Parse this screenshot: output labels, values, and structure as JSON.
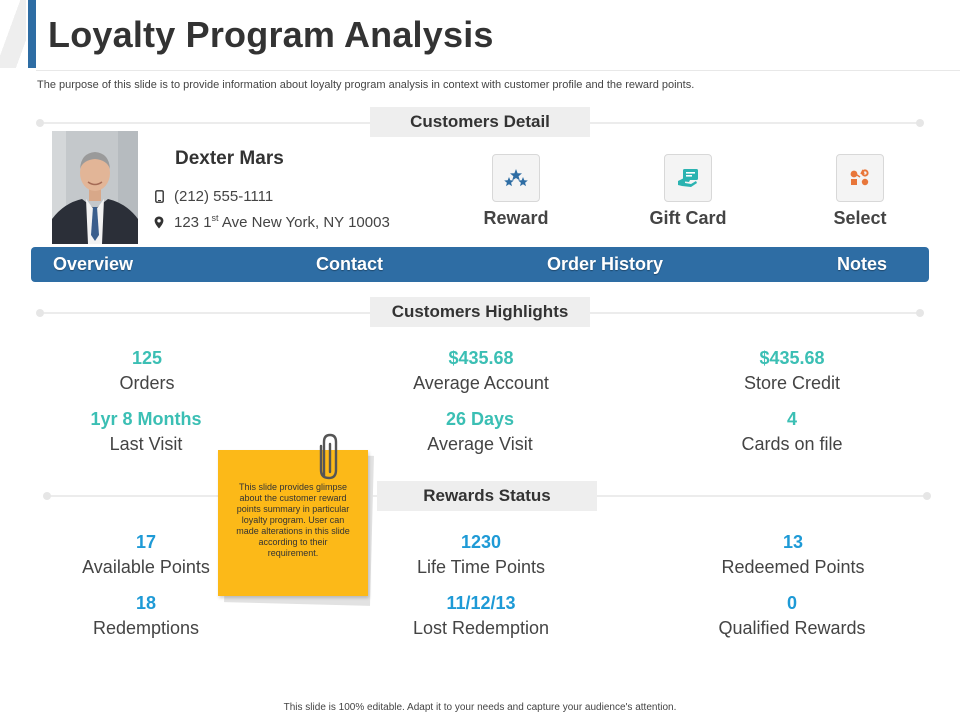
{
  "title": "Loyalty Program Analysis",
  "subtitle": "The purpose of this slide is to provide information about loyalty program analysis in context with customer profile and the reward points.",
  "sections": {
    "customers_detail": "Customers Detail",
    "customers_highlights": "Customers Highlights",
    "rewards_status": "Rewards Status"
  },
  "customer": {
    "name": "Dexter Mars",
    "phone": "(212) 555-1111",
    "address_prefix": "123 1",
    "address_sup": "st",
    "address_suffix": " Ave New York, NY 10003"
  },
  "actions": [
    {
      "label": "Reward",
      "icon": "stars-icon"
    },
    {
      "label": "Gift Card",
      "icon": "gift-card-icon"
    },
    {
      "label": "Select",
      "icon": "select-icon"
    }
  ],
  "nav": [
    {
      "label": "Overview"
    },
    {
      "label": "Contact"
    },
    {
      "label": "Order History"
    },
    {
      "label": "Notes"
    }
  ],
  "highlights": [
    {
      "value": "125",
      "label": "Orders"
    },
    {
      "value": "$435.68",
      "label": "Average Account"
    },
    {
      "value": "$435.68",
      "label": "Store Credit"
    },
    {
      "value": "1yr 8 Months",
      "label": "Last Visit"
    },
    {
      "value": "26 Days",
      "label": "Average Visit"
    },
    {
      "value": "4",
      "label": "Cards on file"
    }
  ],
  "rewards": [
    {
      "value": "17",
      "label": "Available Points"
    },
    {
      "value": "1230",
      "label": "Life Time Points"
    },
    {
      "value": "13",
      "label": "Redeemed Points"
    },
    {
      "value": "18",
      "label": "Redemptions"
    },
    {
      "value": "11/12/13",
      "label": "Lost Redemption"
    },
    {
      "value": "0",
      "label": "Qualified Rewards"
    }
  ],
  "note": "This slide provides glimpse about the customer reward points summary in particular loyalty program. User can made alterations in this slide according to their requirement.",
  "footer": "This slide is 100% editable. Adapt it to your needs and capture your audience's attention.",
  "colors": {
    "primary_blue": "#2e6da4",
    "highlight_teal": "#3bbfb4",
    "reward_blue": "#1e9ad6",
    "note_yellow": "#fcb918"
  }
}
